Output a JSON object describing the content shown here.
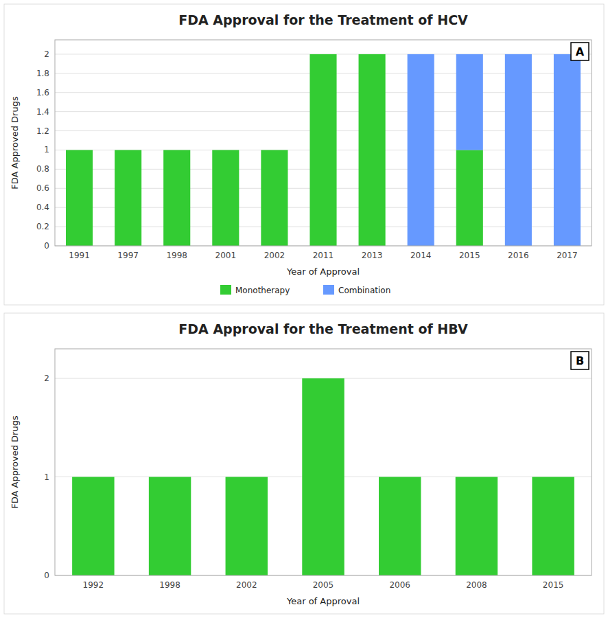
{
  "chart_data": [
    {
      "type": "bar",
      "stacked": true,
      "title": "FDA Approval for the Treatment of HCV",
      "annotations": [
        "A"
      ],
      "xlabel": "Year of Approval",
      "ylabel": "FDA Approved Drugs",
      "categories": [
        "1991",
        "1997",
        "1998",
        "2001",
        "2002",
        "2011",
        "2013",
        "2014",
        "2015",
        "2016",
        "2017"
      ],
      "series": [
        {
          "name": "Monotherapy",
          "color": "#33cc33",
          "values": [
            1,
            1,
            1,
            1,
            1,
            2,
            2,
            0,
            1,
            0,
            0
          ]
        },
        {
          "name": "Combination",
          "color": "#6699ff",
          "values": [
            0,
            0,
            0,
            0,
            0,
            0,
            0,
            2,
            1,
            2,
            2
          ]
        }
      ],
      "ylim": [
        0,
        2.15
      ],
      "yticks": [
        0,
        0.2,
        0.4,
        0.6,
        0.8,
        1,
        1.2,
        1.4,
        1.6,
        1.8,
        2
      ],
      "grid": true,
      "legend": "bottom"
    },
    {
      "type": "bar",
      "title": "FDA Approval for the Treatment of HBV",
      "annotations": [
        "B"
      ],
      "xlabel": "Year of Approval",
      "ylabel": "FDA Approved Drugs",
      "categories": [
        "1992",
        "1998",
        "2002",
        "2005",
        "2006",
        "2008",
        "2015"
      ],
      "values": [
        1,
        1,
        1,
        2,
        1,
        1,
        1
      ],
      "color": "#33cc33",
      "ylim": [
        0,
        2.3
      ],
      "yticks": [
        0,
        1,
        2
      ],
      "grid": true
    }
  ]
}
